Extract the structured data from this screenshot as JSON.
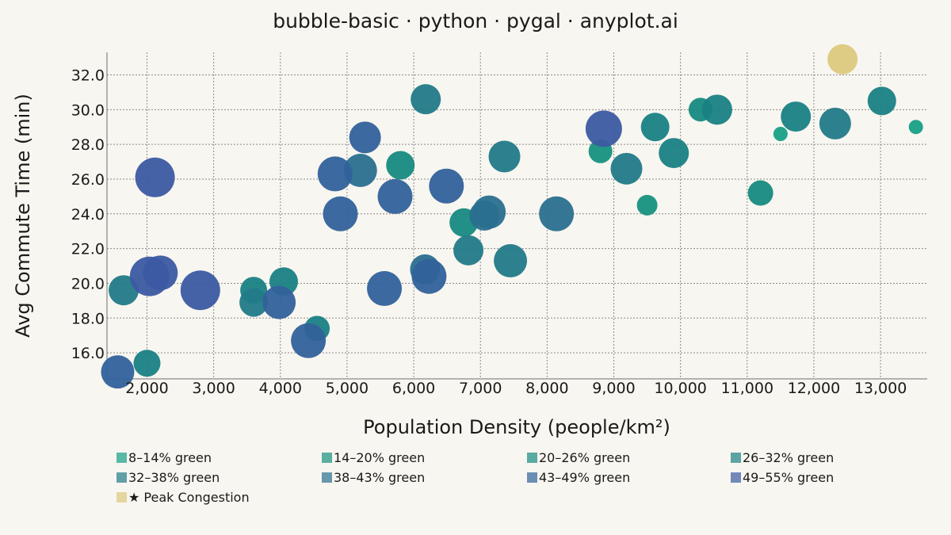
{
  "chart_data": {
    "type": "scatter",
    "title": "bubble-basic · python · pygal · anyplot.ai",
    "xlabel": "Population Density (people/km²)",
    "ylabel": "Avg Commute Time (min)",
    "xlim": [
      1400,
      13700
    ],
    "ylim": [
      14.5,
      33.3
    ],
    "x_ticks": [
      2000,
      3000,
      4000,
      5000,
      6000,
      7000,
      8000,
      9000,
      10000,
      11000,
      12000,
      13000
    ],
    "x_tick_labels": [
      "2,000",
      "3,000",
      "4,000",
      "5,000",
      "6,000",
      "7,000",
      "8,000",
      "9,000",
      "10,000",
      "11,000",
      "12,000",
      "13,000"
    ],
    "y_ticks": [
      16,
      18,
      20,
      22,
      24,
      26,
      28,
      30,
      32
    ],
    "y_tick_labels": [
      "16.0",
      "18.0",
      "20.0",
      "22.0",
      "24.0",
      "26.0",
      "28.0",
      "30.0",
      "32.0"
    ],
    "grid": true,
    "legend_position": "bottom",
    "series": [
      {
        "name": "8–14% green",
        "color": "#16a085",
        "points": [
          [
            11500,
            28.6,
            9
          ],
          [
            13530,
            29.0,
            9
          ]
        ]
      },
      {
        "name": "14–20% green",
        "color": "#17917e",
        "points": [
          [
            9500,
            24.5,
            13
          ],
          [
            8800,
            27.6,
            15
          ]
        ]
      },
      {
        "name": "20–26% green",
        "color": "#168a80",
        "points": [
          [
            5800,
            26.8,
            18
          ],
          [
            6750,
            23.5,
            18
          ],
          [
            10300,
            30.0,
            15
          ],
          [
            11200,
            25.2,
            16
          ]
        ]
      },
      {
        "name": "26–32% green",
        "color": "#198183",
        "points": [
          [
            2000,
            15.4,
            17
          ],
          [
            3600,
            19.6,
            17
          ],
          [
            4050,
            20.1,
            18
          ],
          [
            4550,
            17.4,
            16
          ],
          [
            9620,
            29.0,
            18
          ],
          [
            9900,
            27.5,
            19
          ],
          [
            10550,
            30.0,
            19
          ],
          [
            11730,
            29.6,
            19
          ],
          [
            13020,
            30.5,
            18
          ]
        ]
      },
      {
        "name": "32–38% green",
        "color": "#227a88",
        "points": [
          [
            1650,
            19.6,
            19
          ],
          [
            3600,
            18.9,
            18
          ],
          [
            6180,
            30.6,
            19
          ],
          [
            6820,
            21.9,
            19
          ],
          [
            7360,
            27.3,
            20
          ],
          [
            7450,
            21.3,
            21
          ],
          [
            9190,
            26.6,
            20
          ],
          [
            12320,
            29.2,
            20
          ]
        ]
      },
      {
        "name": "38–43% green",
        "color": "#2a6f8f",
        "points": [
          [
            5200,
            26.5,
            21
          ],
          [
            6170,
            20.8,
            19
          ],
          [
            7130,
            24.1,
            21
          ],
          [
            7060,
            23.9,
            19
          ],
          [
            8140,
            24.0,
            22
          ]
        ]
      },
      {
        "name": "43–49% green",
        "color": "#31619a",
        "points": [
          [
            1560,
            14.9,
            21
          ],
          [
            3980,
            18.9,
            21
          ],
          [
            4420,
            16.7,
            22
          ],
          [
            4820,
            26.3,
            22
          ],
          [
            4900,
            24.0,
            22
          ],
          [
            5270,
            28.4,
            20
          ],
          [
            5560,
            19.7,
            22
          ],
          [
            5720,
            25.0,
            22
          ],
          [
            6230,
            20.4,
            22
          ],
          [
            6490,
            25.6,
            22
          ]
        ]
      },
      {
        "name": "49–55% green",
        "color": "#3c5aa2",
        "points": [
          [
            2120,
            26.1,
            25
          ],
          [
            2200,
            20.6,
            22
          ],
          [
            2040,
            20.4,
            25
          ],
          [
            2800,
            19.6,
            25
          ],
          [
            8850,
            28.9,
            23
          ]
        ]
      },
      {
        "name": "★ Peak Congestion",
        "color": "#dcc97e",
        "points": [
          [
            12430,
            32.9,
            19
          ]
        ]
      }
    ]
  }
}
